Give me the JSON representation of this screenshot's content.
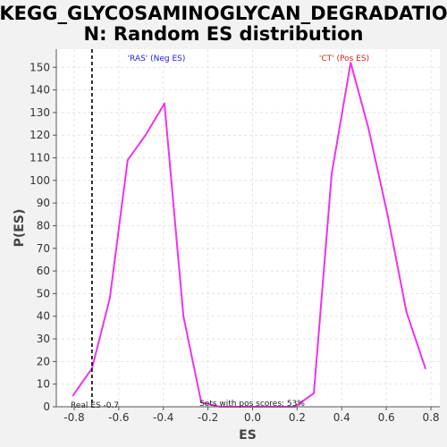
{
  "chart_data": {
    "type": "line",
    "title_lines": [
      "KEGG_GLYCOSAMINOGLYCAN_DEGRADATIO",
      "N: Random ES distribution"
    ],
    "xlabel": "ES",
    "ylabel": "P(ES)",
    "xlim": [
      -0.88,
      0.84
    ],
    "ylim": [
      0,
      158
    ],
    "xticks": [
      -0.8,
      -0.6,
      -0.4,
      -0.2,
      0.0,
      0.2,
      0.4,
      0.6,
      0.8
    ],
    "xtick_labels": [
      "-0.8",
      "-0.6",
      "-0.4",
      "-0.2",
      "0.0",
      "0.2",
      "0.4",
      "0.6",
      "0.8"
    ],
    "yticks": [
      0,
      10,
      20,
      30,
      40,
      50,
      60,
      70,
      80,
      90,
      100,
      110,
      120,
      130,
      140,
      150
    ],
    "ytick_labels": [
      "0",
      "10",
      "20",
      "30",
      "40",
      "50",
      "60",
      "70",
      "80",
      "90",
      "100",
      "110",
      "120",
      "130",
      "140",
      "150"
    ],
    "grid": true,
    "series": [
      {
        "color": "#ee33ee",
        "x": [
          -0.805,
          -0.72,
          -0.64,
          -0.56,
          -0.48,
          -0.395,
          -0.31,
          -0.23,
          -0.145,
          -0.06,
          0.02,
          0.105,
          0.19,
          0.275,
          0.355,
          0.44,
          0.52,
          0.605,
          0.69,
          0.775
        ],
        "values": [
          5,
          17,
          48,
          109,
          120,
          134,
          40,
          2,
          0,
          0,
          0,
          0,
          0,
          6,
          103,
          152,
          123,
          85,
          42,
          17
        ]
      }
    ],
    "vline": {
      "x": -0.72,
      "label": "Real ES -0.7"
    },
    "annotations": {
      "neg_label": "'RAS' (Neg ES)",
      "neg_color": "#2222dd",
      "pos_label": "'CT' (Pos ES)",
      "pos_color": "#dd2222",
      "sets_label": "Sets with pos scores: 53%"
    }
  }
}
